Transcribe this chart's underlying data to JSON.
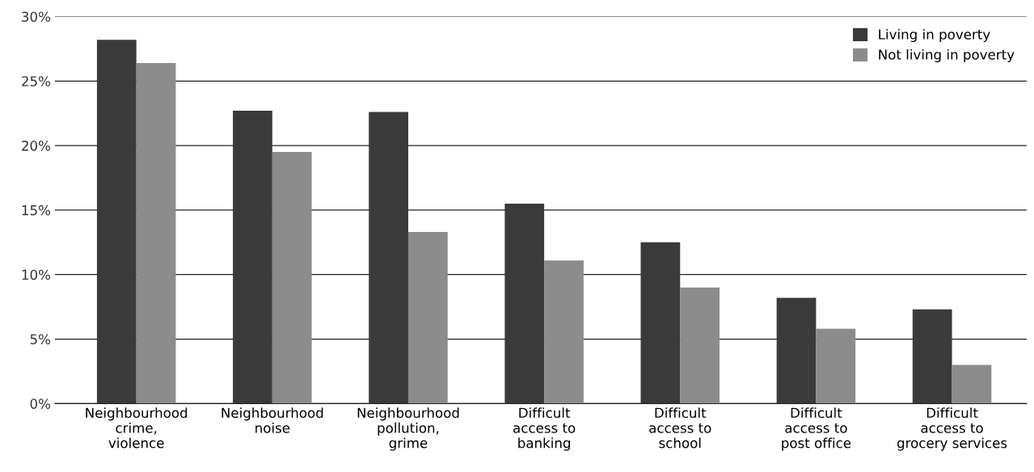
{
  "chart_data": {
    "type": "bar",
    "categories": [
      "Neighbourhood\ncrime,\nviolence",
      "Neighbourhood\nnoise",
      "Neighbourhood\npollution,\ngrime",
      "Difficult\naccess to\nbanking",
      "Difficult\naccess to\nschool",
      "Difficult\naccess to\npost office",
      "Difficult\naccess to\ngrocery services"
    ],
    "series": [
      {
        "name": "Living in poverty",
        "color": "#3a3a3a",
        "values": [
          28.2,
          22.7,
          22.6,
          15.5,
          12.5,
          8.2,
          7.3
        ]
      },
      {
        "name": "Not living in poverty",
        "color": "#8c8c8c",
        "values": [
          26.4,
          19.5,
          13.3,
          11.1,
          9.0,
          5.8,
          3.0
        ]
      }
    ],
    "ylim": [
      0,
      30
    ],
    "yticks": [
      {
        "value": 0,
        "label": "0%"
      },
      {
        "value": 5,
        "label": "5%"
      },
      {
        "value": 10,
        "label": "10%"
      },
      {
        "value": 15,
        "label": "15%"
      },
      {
        "value": 20,
        "label": "20%"
      },
      {
        "value": 25,
        "label": "25%"
      },
      {
        "value": 30,
        "label": "30%"
      }
    ],
    "grid": "y",
    "legend": "top right"
  }
}
